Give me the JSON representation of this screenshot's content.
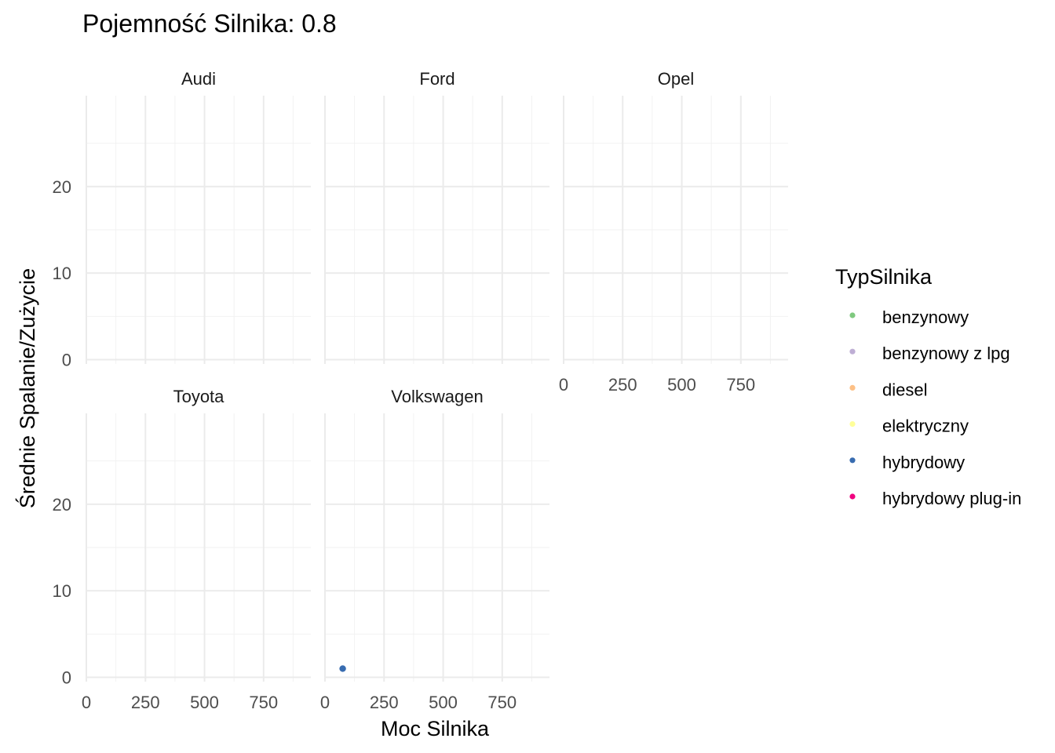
{
  "chart_data": {
    "type": "scatter",
    "title": "Pojemność Silnika: 0.8",
    "xlabel": "Moc Silnika",
    "ylabel": "Średnie Spalanie/Zużycie",
    "xlim": [
      0,
      950
    ],
    "ylim": [
      -0.5,
      30.5
    ],
    "x_ticks": [
      0,
      250,
      500,
      750
    ],
    "x_tick_labels": [
      "0",
      "250",
      "500",
      "750"
    ],
    "y_ticks": [
      0,
      10,
      20
    ],
    "y_tick_labels": [
      "0",
      "10",
      "20"
    ],
    "grid": true,
    "facets": [
      "Audi",
      "Ford",
      "Opel",
      "Toyota",
      "Volkswagen"
    ],
    "legend": {
      "title": "TypSilnika",
      "position": "right",
      "entries": [
        {
          "label": "benzynowy",
          "color": "#7fc97f"
        },
        {
          "label": "benzynowy z lpg",
          "color": "#beaed4"
        },
        {
          "label": "diesel",
          "color": "#fdc086"
        },
        {
          "label": "elektryczny",
          "color": "#ffff99"
        },
        {
          "label": "hybrydowy",
          "color": "#386cb0"
        },
        {
          "label": "hybrydowy plug-in",
          "color": "#f0027f"
        }
      ]
    },
    "points": [
      {
        "facet": "Volkswagen",
        "x": 75,
        "y": 1,
        "type": "hybrydowy"
      }
    ]
  }
}
